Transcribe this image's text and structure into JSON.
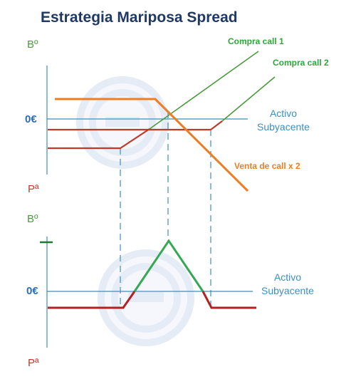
{
  "title": "Estrategia Mariposa Spread",
  "top_chart": {
    "y_top_label": "Bº",
    "zero_label": "0€",
    "y_bottom_label": "Pª",
    "x_axis_label_line1": "Activo",
    "x_axis_label_line2": "Subyacente",
    "series_labels": {
      "buy_call_1": "Compra call 1",
      "buy_call_2": "Compra call 2",
      "sell_calls": "Venta de call x 2"
    }
  },
  "bottom_chart": {
    "y_top_label": "Bº",
    "zero_label": "0€",
    "y_bottom_label": "Pª",
    "x_axis_label_line1": "Activo",
    "x_axis_label_line2": "Subyacente"
  },
  "colors": {
    "title": "#1f3864",
    "profit": "#4a9a3c",
    "loss": "#c0392b",
    "orange": "#f07c22",
    "axis": "#3c8fbf",
    "watermark": "#dfe6f5"
  }
}
